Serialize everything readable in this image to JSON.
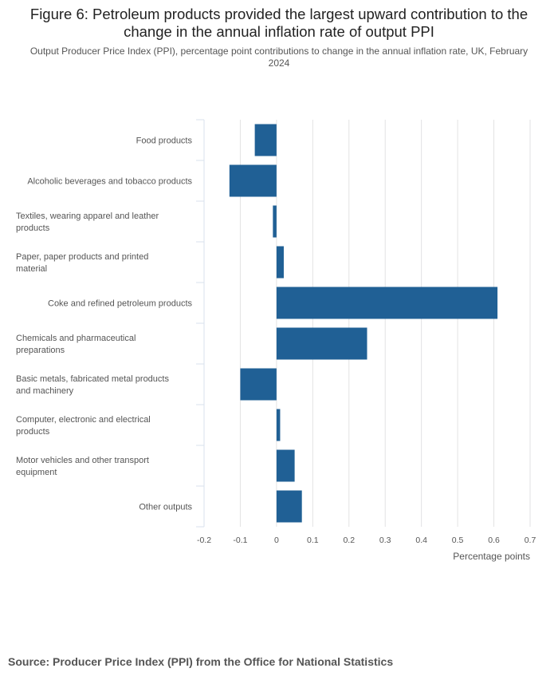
{
  "title": "Figure 6: Petroleum products provided the largest upward contribution to the change in the annual inflation rate of output PPI",
  "subtitle": "Output Producer Price Index (PPI), percentage point contributions to change in the annual inflation rate, UK, February 2024",
  "source": "Source: Producer Price Index (PPI) from the Office for National Statistics",
  "chart_data": {
    "type": "bar",
    "orientation": "horizontal",
    "title": "Figure 6: Petroleum products provided the largest upward contribution to the change in the annual inflation rate of output PPI",
    "xlabel": "Percentage points",
    "ylabel": "",
    "xlim": [
      -0.2,
      0.7
    ],
    "xticks": [
      -0.2,
      -0.1,
      0,
      0.1,
      0.2,
      0.3,
      0.4,
      0.5,
      0.6,
      0.7
    ],
    "xtick_labels": [
      "-0.2",
      "-0.1",
      "0",
      "0.1",
      "0.2",
      "0.3",
      "0.4",
      "0.5",
      "0.6",
      "0.7"
    ],
    "grid": true,
    "categories": [
      [
        "Food products"
      ],
      [
        "Alcoholic beverages and tobacco products"
      ],
      [
        "Textiles, wearing apparel and leather",
        "products"
      ],
      [
        "Paper, paper products and printed",
        "material"
      ],
      [
        "Coke and refined petroleum products"
      ],
      [
        "Chemicals and pharmaceutical",
        "preparations"
      ],
      [
        "Basic metals, fabricated metal products",
        "and machinery"
      ],
      [
        "Computer, electronic and electrical",
        "products"
      ],
      [
        "Motor vehicles and other transport",
        "equipment"
      ],
      [
        "Other outputs"
      ]
    ],
    "values": [
      -0.06,
      -0.13,
      -0.01,
      0.02,
      0.61,
      0.25,
      -0.1,
      0.01,
      0.05,
      0.07
    ],
    "bar_color": "#206095"
  }
}
